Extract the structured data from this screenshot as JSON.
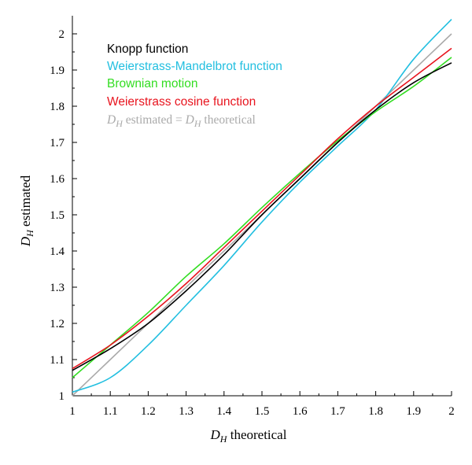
{
  "chart_data": {
    "type": "line",
    "title": "",
    "xlabel": {
      "symbol": "D",
      "sub": "H",
      "text": " theoretical"
    },
    "ylabel": {
      "symbol": "D",
      "sub": "H",
      "text": " estimated"
    },
    "xlim": [
      1,
      2
    ],
    "ylim": [
      1,
      2.05
    ],
    "xticks": [
      "1",
      "1.1",
      "1.2",
      "1.3",
      "1.4",
      "1.5",
      "1.6",
      "1.7",
      "1.8",
      "1.9",
      "2"
    ],
    "yticks": [
      "1",
      "1.1",
      "1.2",
      "1.3",
      "1.4",
      "1.5",
      "1.6",
      "1.7",
      "1.8",
      "1.9",
      "2"
    ],
    "grid": false,
    "legend_position": "top-left",
    "x": [
      1.0,
      1.1,
      1.2,
      1.3,
      1.4,
      1.5,
      1.6,
      1.7,
      1.8,
      1.9,
      2.0
    ],
    "series": [
      {
        "name": "Knopp function",
        "color": "#000000",
        "values": [
          1.07,
          1.13,
          1.2,
          1.29,
          1.39,
          1.5,
          1.6,
          1.7,
          1.79,
          1.865,
          1.92
        ]
      },
      {
        "name": "Weierstrass-Mandelbrot function",
        "color": "#22bfe0",
        "values": [
          1.01,
          1.05,
          1.14,
          1.25,
          1.36,
          1.48,
          1.59,
          1.69,
          1.79,
          1.93,
          2.04
        ]
      },
      {
        "name": "Brownian motion",
        "color": "#33dd22",
        "values": [
          1.05,
          1.14,
          1.23,
          1.33,
          1.42,
          1.52,
          1.615,
          1.705,
          1.785,
          1.855,
          1.935
        ]
      },
      {
        "name": "Weierstrass cosine function",
        "color": "#e8141e",
        "values": [
          1.075,
          1.14,
          1.22,
          1.31,
          1.41,
          1.51,
          1.61,
          1.71,
          1.8,
          1.88,
          1.96
        ]
      },
      {
        "name": {
          "symbol": "D",
          "sub": "H",
          "text": " estimated = ",
          "symbol2": "D",
          "sub2": "H",
          "text2": " theoretical"
        },
        "color": "#aaaaaa",
        "values": [
          1.0,
          1.1,
          1.2,
          1.3,
          1.4,
          1.5,
          1.6,
          1.7,
          1.8,
          1.9,
          2.0
        ]
      }
    ]
  }
}
